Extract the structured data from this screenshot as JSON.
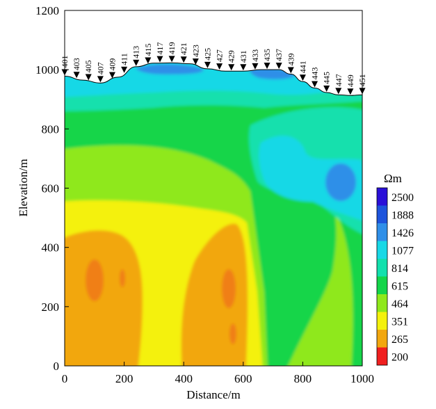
{
  "chart_data": {
    "type": "heatmap",
    "subtype": "resistivity-contour-section",
    "xlabel": "Distance/m",
    "ylabel": "Elevation/m",
    "xlim": [
      0,
      1000
    ],
    "ylim": [
      0,
      1200
    ],
    "x_ticks": [
      0,
      200,
      400,
      600,
      800,
      1000
    ],
    "y_ticks": [
      0,
      200,
      400,
      600,
      800,
      1000,
      1200
    ],
    "colorbar": {
      "unit": "Ωm",
      "levels": [
        "2500",
        "1888",
        "1426",
        "1077",
        "814",
        "615",
        "464",
        "351",
        "265",
        "200"
      ],
      "colors": [
        "#2a10d8",
        "#1d54dc",
        "#2f8fe8",
        "#18d8e6",
        "#12e0ad",
        "#14d54a",
        "#8fe81b",
        "#f4f10c",
        "#f2a70f",
        "#f01f1f"
      ]
    },
    "surface_profile": {
      "x": [
        0,
        60,
        120,
        180,
        240,
        300,
        360,
        420,
        480,
        540,
        600,
        660,
        720,
        760,
        800,
        840,
        880,
        920,
        960,
        1000
      ],
      "elevation": [
        978,
        965,
        955,
        975,
        1010,
        1022,
        1023,
        1020,
        1003,
        995,
        995,
        1000,
        1000,
        985,
        960,
        938,
        923,
        915,
        913,
        915
      ]
    },
    "stations": [
      {
        "label": "401",
        "x": 0
      },
      {
        "label": "403",
        "x": 40
      },
      {
        "label": "405",
        "x": 80
      },
      {
        "label": "407",
        "x": 120
      },
      {
        "label": "409",
        "x": 160
      },
      {
        "label": "411",
        "x": 200
      },
      {
        "label": "413",
        "x": 240
      },
      {
        "label": "415",
        "x": 280
      },
      {
        "label": "417",
        "x": 320
      },
      {
        "label": "419",
        "x": 360
      },
      {
        "label": "421",
        "x": 400
      },
      {
        "label": "423",
        "x": 440
      },
      {
        "label": "425",
        "x": 480
      },
      {
        "label": "427",
        "x": 520
      },
      {
        "label": "429",
        "x": 560
      },
      {
        "label": "431",
        "x": 600
      },
      {
        "label": "433",
        "x": 640
      },
      {
        "label": "435",
        "x": 680
      },
      {
        "label": "437",
        "x": 720
      },
      {
        "label": "439",
        "x": 760
      },
      {
        "label": "441",
        "x": 800
      },
      {
        "label": "443",
        "x": 840
      },
      {
        "label": "445",
        "x": 880
      },
      {
        "label": "447",
        "x": 920
      },
      {
        "label": "449",
        "x": 960
      },
      {
        "label": "451",
        "x": 1000
      }
    ]
  }
}
